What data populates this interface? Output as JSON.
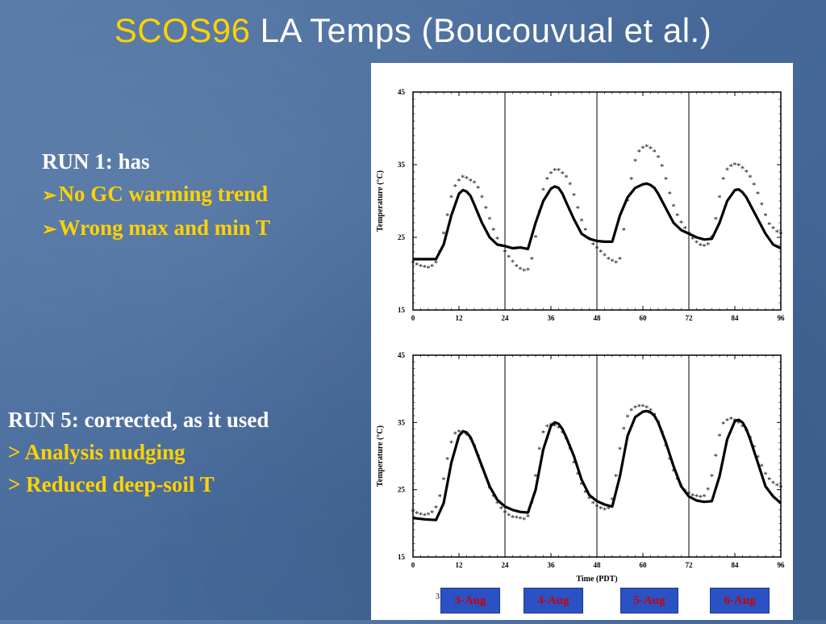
{
  "slide": {
    "title_accent": "SCOS96",
    "title_rest": " LA Temps (Boucouvual et al.)",
    "run1": {
      "heading": "RUN 1: has",
      "bullets": [
        "No GC warming trend",
        "Wrong max and min T"
      ]
    },
    "run5": {
      "heading": "RUN 5: corrected, as it used",
      "bullets": [
        "> Analysis nudging",
        "> Reduced deep-soil T"
      ]
    },
    "dates": [
      "3-Aug",
      "4-Aug",
      "5-Aug",
      "6-Aug"
    ],
    "page_number": "3",
    "colors": {
      "background": "#4a6e9a",
      "accent": "#ffd200",
      "date_box": "#2a52c4",
      "date_text": "#cc0000"
    }
  },
  "chart_data": [
    {
      "type": "line",
      "xlabel": "",
      "ylabel": "Temperature (°C)",
      "xlim": [
        0,
        96
      ],
      "ylim": [
        15,
        45
      ],
      "xticks": [
        "0",
        "12",
        "24",
        "36",
        "48",
        "60",
        "72",
        "84",
        "96"
      ],
      "yticks": [
        "15",
        "25",
        "35",
        "45"
      ],
      "day_dividers": [
        24,
        48,
        72
      ],
      "series": [
        {
          "style": "line",
          "x": [
            0,
            3,
            6,
            8,
            10,
            12,
            13,
            14,
            15,
            16,
            18,
            20,
            22,
            24,
            26,
            28,
            30,
            32,
            34,
            36,
            37,
            38,
            39,
            40,
            42,
            44,
            46,
            48,
            50,
            52,
            54,
            56,
            58,
            60,
            61,
            62,
            63,
            64,
            66,
            68,
            70,
            72,
            74,
            76,
            78,
            80,
            82,
            84,
            85,
            86,
            87,
            88,
            90,
            92,
            94,
            96
          ],
          "y": [
            22,
            22,
            22,
            24,
            28,
            31,
            31.5,
            31.3,
            30.7,
            29.5,
            27,
            25,
            24,
            23.8,
            23.5,
            23.6,
            23.4,
            27,
            30,
            31.7,
            32,
            31.8,
            31,
            29.8,
            27.5,
            25.5,
            24.8,
            24.5,
            24.4,
            24.4,
            28,
            30.5,
            31.8,
            32.3,
            32.4,
            32.2,
            31.8,
            31,
            29,
            27,
            26,
            25.5,
            25,
            24.7,
            24.8,
            27,
            30,
            31.5,
            31.6,
            31.2,
            30.5,
            29.5,
            27.5,
            25.5,
            24,
            23.5
          ]
        },
        {
          "style": "asterisk",
          "x": [
            0,
            1,
            2,
            3,
            4,
            5,
            6,
            7,
            8,
            9,
            10,
            11,
            12,
            13,
            14,
            15,
            16,
            17,
            18,
            19,
            20,
            21,
            22,
            23,
            24,
            25,
            26,
            27,
            28,
            29,
            30,
            31,
            32,
            33,
            34,
            35,
            36,
            37,
            38,
            39,
            40,
            41,
            42,
            43,
            44,
            45,
            46,
            47,
            48,
            49,
            50,
            51,
            52,
            53,
            54,
            55,
            56,
            57,
            58,
            59,
            60,
            61,
            62,
            63,
            64,
            65,
            66,
            67,
            68,
            69,
            70,
            71,
            72,
            73,
            74,
            75,
            76,
            77,
            78,
            79,
            80,
            81,
            82,
            83,
            84,
            85,
            86,
            87,
            88,
            89,
            90,
            91,
            92,
            93,
            94,
            95,
            96
          ],
          "y": [
            21.5,
            21.2,
            21,
            20.9,
            20.8,
            21,
            21.5,
            23,
            25.5,
            28,
            30.5,
            32,
            32.8,
            33.3,
            33.1,
            32.8,
            32.5,
            31.8,
            30.5,
            29,
            27.5,
            26,
            24.8,
            23.8,
            23,
            22.3,
            21.6,
            21,
            20.6,
            20.4,
            20.5,
            22,
            25,
            28.5,
            31.5,
            33,
            33.8,
            34.2,
            34.2,
            33.8,
            33.3,
            32.3,
            30.8,
            29,
            27.3,
            26,
            24.8,
            24,
            23.5,
            23,
            22.5,
            22,
            21.7,
            21.5,
            22,
            26,
            30,
            33,
            35.5,
            36.8,
            37.3,
            37.5,
            37.2,
            36.8,
            36,
            34.8,
            33,
            31,
            29.3,
            28,
            27,
            26.2,
            25.5,
            24.8,
            24.3,
            23.9,
            23.8,
            24,
            25,
            27.5,
            30.5,
            33,
            34.3,
            34.8,
            35,
            34.9,
            34.5,
            34,
            33.3,
            32.2,
            31,
            29.5,
            28,
            26.8,
            26.2,
            25.7,
            25.5
          ]
        }
      ]
    },
    {
      "type": "line",
      "xlabel": "Time (PDT)",
      "ylabel": "Temperature (°C)",
      "xlim": [
        0,
        96
      ],
      "ylim": [
        15,
        45
      ],
      "xticks": [
        "0",
        "12",
        "24",
        "36",
        "48",
        "60",
        "72",
        "84",
        "96"
      ],
      "yticks": [
        "15",
        "25",
        "35",
        "45"
      ],
      "day_dividers": [
        24,
        48,
        72
      ],
      "series": [
        {
          "style": "line",
          "x": [
            0,
            3,
            6,
            8,
            10,
            12,
            13,
            14,
            15,
            16,
            18,
            20,
            22,
            24,
            26,
            28,
            30,
            32,
            34,
            36,
            37,
            38,
            39,
            40,
            42,
            44,
            46,
            48,
            50,
            52,
            54,
            56,
            58,
            60,
            61,
            62,
            63,
            64,
            66,
            68,
            70,
            72,
            74,
            76,
            78,
            80,
            82,
            84,
            85,
            86,
            87,
            88,
            90,
            92,
            94,
            96
          ],
          "y": [
            20.8,
            20.6,
            20.5,
            23,
            29,
            33,
            33.7,
            33.5,
            32.8,
            31.5,
            28.5,
            25.5,
            23.5,
            22.5,
            22,
            21.7,
            21.6,
            25,
            31,
            34.5,
            35,
            34.8,
            34,
            32.8,
            30,
            26.5,
            24.2,
            23.3,
            22.8,
            22.5,
            27,
            33,
            35.8,
            36.6,
            36.7,
            36.5,
            36,
            35,
            32,
            28.5,
            25.5,
            24,
            23.4,
            23.2,
            23.3,
            27,
            32.5,
            35.2,
            35.4,
            35,
            34,
            32.5,
            29,
            25.5,
            24,
            23
          ]
        },
        {
          "style": "asterisk",
          "x": [
            0,
            1,
            2,
            3,
            4,
            5,
            6,
            7,
            8,
            9,
            10,
            11,
            12,
            13,
            14,
            15,
            16,
            17,
            18,
            19,
            20,
            21,
            22,
            23,
            24,
            25,
            26,
            27,
            28,
            29,
            30,
            31,
            32,
            33,
            34,
            35,
            36,
            37,
            38,
            39,
            40,
            41,
            42,
            43,
            44,
            45,
            46,
            47,
            48,
            49,
            50,
            51,
            52,
            53,
            54,
            55,
            56,
            57,
            58,
            59,
            60,
            61,
            62,
            63,
            64,
            65,
            66,
            67,
            68,
            69,
            70,
            71,
            72,
            73,
            74,
            75,
            76,
            77,
            78,
            79,
            80,
            81,
            82,
            83,
            84,
            85,
            86,
            87,
            88,
            89,
            90,
            91,
            92,
            93,
            94,
            95,
            96
          ],
          "y": [
            21.8,
            21.5,
            21.3,
            21.2,
            21.3,
            21.6,
            22.3,
            24,
            26.5,
            29.5,
            32,
            33.3,
            33.6,
            33.4,
            33.1,
            32.5,
            31.5,
            30,
            28.3,
            26.8,
            25.2,
            24,
            23,
            22.2,
            21.6,
            21.2,
            20.9,
            20.8,
            20.7,
            20.6,
            21,
            23,
            27,
            31,
            33.5,
            34.4,
            34.6,
            34.5,
            34.2,
            33.5,
            32.5,
            31,
            29,
            27.3,
            25.8,
            24.6,
            23.7,
            23,
            22.5,
            22.2,
            22,
            22.2,
            23.5,
            27,
            31,
            34,
            35.8,
            36.8,
            37.2,
            37.4,
            37.4,
            37.2,
            36.8,
            36.1,
            35,
            33.5,
            31.5,
            29.5,
            27.8,
            26.5,
            25.5,
            24.8,
            24.4,
            24.1,
            24,
            23.9,
            24,
            25,
            27,
            30,
            33,
            34.8,
            35.3,
            35.5,
            35.3,
            34.9,
            34.4,
            33.7,
            32.7,
            31.3,
            29.8,
            28.5,
            27.3,
            26.5,
            26,
            25.6,
            25.4
          ]
        }
      ]
    }
  ]
}
